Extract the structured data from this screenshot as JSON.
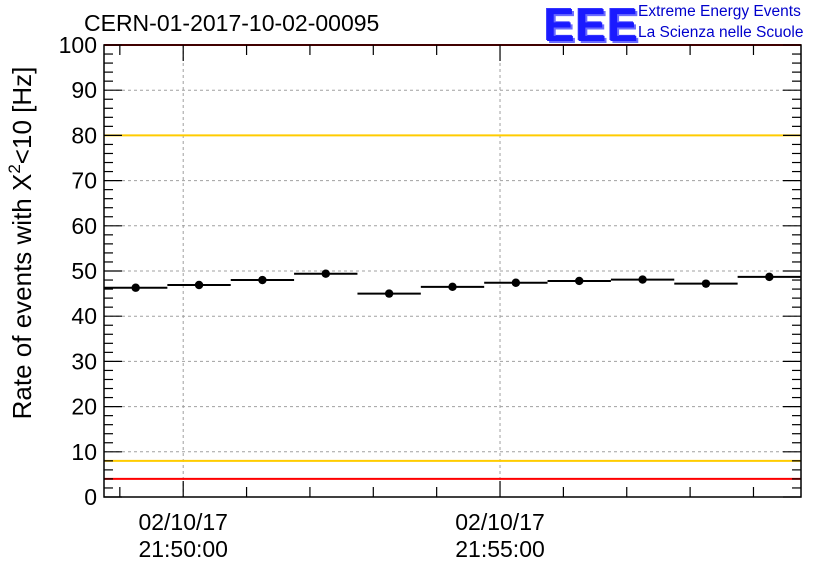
{
  "chart_data": {
    "type": "scatter",
    "title": "CERN-01-2017-10-02-00095",
    "ylabel": "Rate of events with X",
    "ylabel_sup": "2",
    "ylabel_rest": "<10 [Hz]",
    "xlabel": "",
    "ylim": [
      0,
      100
    ],
    "yticks": [
      0,
      10,
      20,
      30,
      40,
      50,
      60,
      70,
      80,
      90,
      100
    ],
    "xtick_labels": [
      {
        "date": "02/10/17",
        "time": "21:50:00",
        "x_minutes": 0
      },
      {
        "date": "02/10/17",
        "time": "21:55:00",
        "x_minutes": 5
      }
    ],
    "xlim_minutes": [
      -1.25,
      9.75
    ],
    "bin_width_minutes": 1,
    "grid": true,
    "points": [
      {
        "x": -0.75,
        "y": 46.3
      },
      {
        "x": 0.25,
        "y": 46.9
      },
      {
        "x": 1.25,
        "y": 48.0
      },
      {
        "x": 2.25,
        "y": 49.4
      },
      {
        "x": 3.25,
        "y": 45.0
      },
      {
        "x": 4.25,
        "y": 46.5
      },
      {
        "x": 5.25,
        "y": 47.4
      },
      {
        "x": 6.25,
        "y": 47.8
      },
      {
        "x": 7.25,
        "y": 48.1
      },
      {
        "x": 8.25,
        "y": 47.2
      },
      {
        "x": 9.25,
        "y": 48.7
      }
    ],
    "reference_lines": [
      {
        "y": 100,
        "color": "#ff0000"
      },
      {
        "y": 80,
        "color": "#ffcc00"
      },
      {
        "y": 8,
        "color": "#ffcc00"
      },
      {
        "y": 4,
        "color": "#ff0000"
      }
    ]
  },
  "logo": {
    "mark": "EEE",
    "line1": "Extreme Energy Events",
    "line2": "La Scienza nelle Scuole"
  }
}
